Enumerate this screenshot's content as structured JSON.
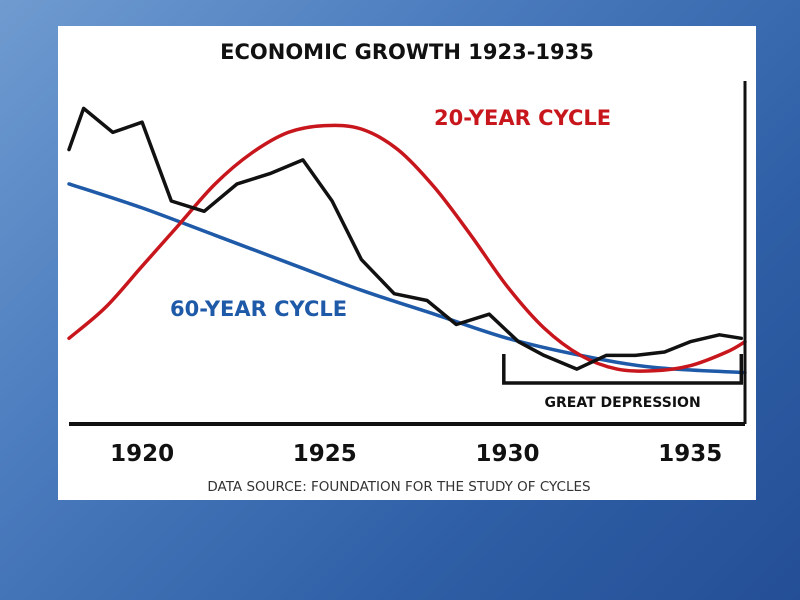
{
  "chart_data": {
    "type": "line",
    "title": "ECONOMIC GROWTH 1923-1935",
    "source_note": "DATA SOURCE: FOUNDATION FOR THE STUDY OF CYCLES",
    "x_ticks": [
      "1920",
      "1925",
      "1930",
      "1935"
    ],
    "xlim": [
      1918,
      1936.5
    ],
    "annotation": {
      "label": "GREAT DEPRESSION",
      "x_start": 1929.9,
      "x_end": 1936.4
    },
    "grid": false,
    "legend": "inline labels",
    "series": [
      {
        "name": "60-YEAR CYCLE",
        "color": "#1f5aa8",
        "x": [
          1918,
          1920,
          1922,
          1924,
          1926,
          1928,
          1930,
          1932,
          1934,
          1936.5
        ],
        "y": [
          70,
          63,
          55,
          47,
          39,
          32,
          25,
          20,
          16.5,
          15
        ]
      },
      {
        "name": "20-YEAR CYCLE",
        "color": "#c8161d",
        "x": [
          1918,
          1919,
          1920,
          1921,
          1922,
          1923,
          1924,
          1925,
          1926,
          1927,
          1928,
          1929,
          1930,
          1931,
          1932,
          1933,
          1934,
          1935,
          1936,
          1936.5
        ],
        "y": [
          25,
          34,
          46,
          58,
          70,
          79,
          85,
          87,
          86,
          80,
          69,
          55,
          40,
          28,
          20,
          16,
          15.5,
          17,
          21,
          24
        ]
      },
      {
        "name": "Economic growth",
        "color": "#111111",
        "x": [
          1918,
          1918.4,
          1919.2,
          1920,
          1920.8,
          1921.7,
          1922.6,
          1923.5,
          1924.4,
          1925.2,
          1926,
          1926.9,
          1927.8,
          1928.6,
          1929.5,
          1930.3,
          1931,
          1931.9,
          1932.7,
          1933.5,
          1934.3,
          1935,
          1935.8,
          1936.4
        ],
        "y": [
          80,
          92,
          85,
          88,
          65,
          62,
          70,
          73,
          77,
          65,
          48,
          38,
          36,
          29,
          32,
          24,
          20,
          16,
          20,
          20,
          21,
          24,
          26,
          25
        ]
      }
    ]
  }
}
